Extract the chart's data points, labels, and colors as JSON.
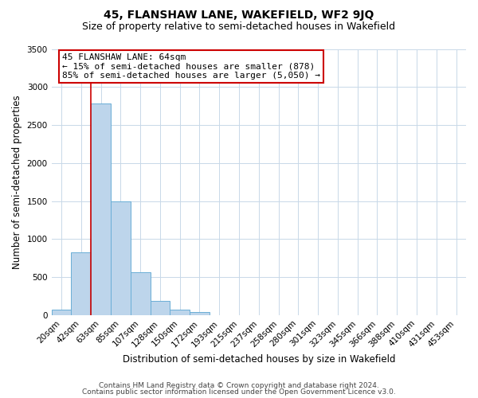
{
  "title": "45, FLANSHAW LANE, WAKEFIELD, WF2 9JQ",
  "subtitle": "Size of property relative to semi-detached houses in Wakefield",
  "bar_labels": [
    "20sqm",
    "42sqm",
    "63sqm",
    "85sqm",
    "107sqm",
    "128sqm",
    "150sqm",
    "172sqm",
    "193sqm",
    "215sqm",
    "237sqm",
    "258sqm",
    "280sqm",
    "301sqm",
    "323sqm",
    "345sqm",
    "366sqm",
    "388sqm",
    "410sqm",
    "431sqm",
    "453sqm"
  ],
  "bar_values": [
    70,
    830,
    2780,
    1500,
    560,
    190,
    70,
    40,
    0,
    0,
    0,
    0,
    0,
    0,
    0,
    0,
    0,
    0,
    0,
    0,
    0
  ],
  "bar_color": "#bdd5eb",
  "bar_edge_color": "#6aaed6",
  "ylim": [
    0,
    3500
  ],
  "yticks": [
    0,
    500,
    1000,
    1500,
    2000,
    2500,
    3000,
    3500
  ],
  "ylabel": "Number of semi-detached properties",
  "xlabel": "Distribution of semi-detached houses by size in Wakefield",
  "property_line_idx": 2,
  "property_line_label": "45 FLANSHAW LANE: 64sqm",
  "annotation_line1": "← 15% of semi-detached houses are smaller (878)",
  "annotation_line2": "85% of semi-detached houses are larger (5,050) →",
  "annotation_box_color": "#cc0000",
  "footnote1": "Contains HM Land Registry data © Crown copyright and database right 2024.",
  "footnote2": "Contains public sector information licensed under the Open Government Licence v3.0.",
  "background_color": "#ffffff",
  "grid_color": "#c8d8e8",
  "title_fontsize": 10,
  "subtitle_fontsize": 9,
  "axis_label_fontsize": 8.5,
  "tick_fontsize": 7.5,
  "footnote_fontsize": 6.5
}
